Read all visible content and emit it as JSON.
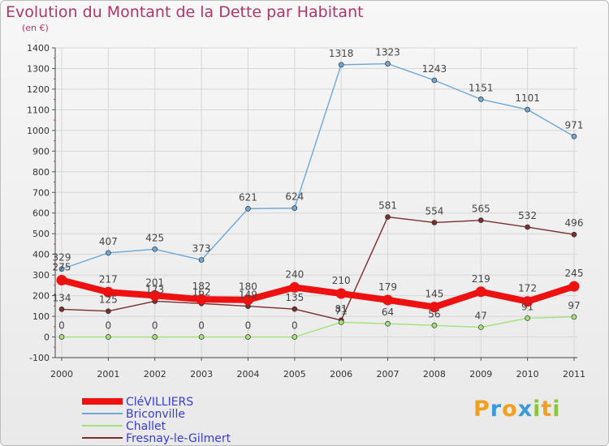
{
  "header": {
    "title": "Evolution du Montant de la Dette par Habitant",
    "subtitle": "(en €)"
  },
  "brand": {
    "letters": [
      "P",
      "r",
      "o",
      "x",
      "i",
      "t",
      "i"
    ],
    "colors": [
      "#f0a020",
      "#3b9bd6",
      "#f0a020",
      "#3b9bd6",
      "#8cc63f",
      "#f0a020",
      "#8cc63f"
    ]
  },
  "chart_data": {
    "type": "line",
    "title": "Evolution du Montant de la Dette par Habitant",
    "subtitle": "(en €)",
    "xlabel": "",
    "ylabel": "",
    "x": [
      "2000",
      "2001",
      "2002",
      "2003",
      "2004",
      "2005",
      "2006",
      "2007",
      "2008",
      "2009",
      "2010",
      "2011"
    ],
    "ylim": [
      -100,
      1400
    ],
    "yticks": [
      -100,
      0,
      100,
      200,
      300,
      400,
      500,
      600,
      700,
      800,
      900,
      1000,
      1100,
      1200,
      1300,
      1400
    ],
    "grid": true,
    "legend_position": "bottom-left",
    "series": [
      {
        "name": "CléVILLIERS",
        "color": "#ee1111",
        "values": [
          275,
          217,
          201,
          182,
          180,
          240,
          210,
          179,
          145,
          219,
          172,
          245
        ]
      },
      {
        "name": "Briconville",
        "color": "#6fa8d6",
        "values": [
          329,
          407,
          425,
          373,
          621,
          624,
          1318,
          1323,
          1243,
          1151,
          1101,
          971
        ]
      },
      {
        "name": "Challet",
        "color": "#a6e07a",
        "values": [
          0,
          0,
          0,
          0,
          0,
          0,
          71,
          64,
          56,
          47,
          91,
          97
        ]
      },
      {
        "name": "Fresnay-le-Gilmert",
        "color": "#7a2e2e",
        "values": [
          134,
          125,
          173,
          162,
          149,
          135,
          81,
          581,
          554,
          565,
          532,
          496
        ]
      }
    ]
  }
}
